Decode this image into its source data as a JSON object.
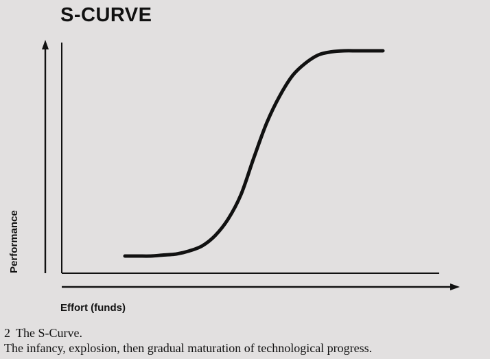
{
  "figure": {
    "number": "2",
    "caption_title": "The S-Curve.",
    "caption_text": "The infancy, explosion, then gradual maturation of technological progress."
  },
  "chart_data": {
    "type": "line",
    "title": "S-CURVE",
    "xlabel": "Effort (funds)",
    "ylabel": "Performance",
    "grid": false,
    "legend": "none",
    "series": [
      {
        "x": [
          0,
          0.05,
          0.1,
          0.15,
          0.2,
          0.25,
          0.3,
          0.35,
          0.4,
          0.45,
          0.5,
          0.55,
          0.6,
          0.65,
          0.7,
          0.75,
          0.8,
          0.85,
          0.9,
          0.95,
          1
        ],
        "values": [
          0.0,
          0.0,
          0.0,
          0.005,
          0.01,
          0.025,
          0.05,
          0.1,
          0.18,
          0.3,
          0.48,
          0.65,
          0.78,
          0.88,
          0.94,
          0.98,
          0.995,
          1.0,
          1.0,
          1.0,
          1.0
        ]
      }
    ],
    "xlim": [
      0,
      1
    ],
    "ylim": [
      0,
      1
    ],
    "ticks": "none"
  },
  "colors": {
    "background": "#e2e0e0",
    "ink": "#111111"
  }
}
